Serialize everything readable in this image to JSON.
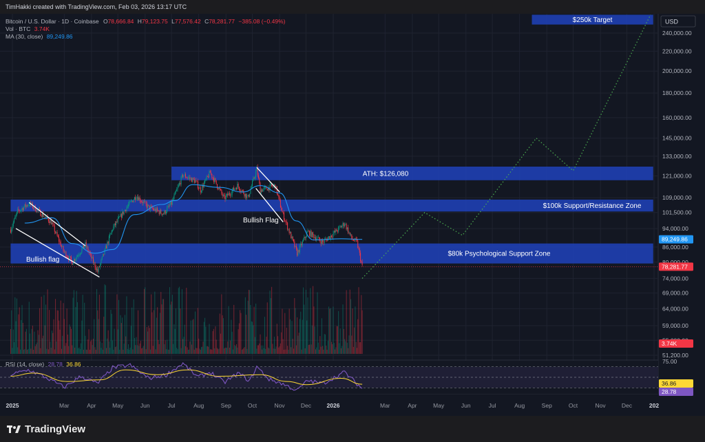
{
  "header": {
    "credit": "TimHakki created with TradingView.com, Feb 03, 2026 13:17 UTC"
  },
  "legend": {
    "symbol": "Bitcoin / U.S. Dollar · 1D · Coinbase",
    "open_label": "O",
    "open": "78,666.84",
    "high_label": "H",
    "high": "79,123.75",
    "low_label": "L",
    "low": "77,576.42",
    "close_label": "C",
    "close": "78,281.77",
    "change": "−385.08 (−0.49%)",
    "vol_label": "Vol · BTC",
    "vol": "3.74K",
    "ma_label": "MA (30, close)",
    "ma": "89,249.86",
    "rsi_label": "RSI (14, close)",
    "rsi": "28.78",
    "rsi_ma": "36.86"
  },
  "currency": "USD",
  "footer": {
    "brand": "TradingView"
  },
  "colors": {
    "background": "#131722",
    "up": "#089981",
    "down": "#f23645",
    "zone": "#1e3fb0",
    "ma": "#2196f3",
    "rsi": "#7e57c2",
    "rsi_ma": "#fdd835",
    "projection": "#4caf50"
  },
  "chart_data": {
    "type": "candlestick",
    "x_ticks": [
      "2025",
      "Mar",
      "Apr",
      "May",
      "Jun",
      "Jul",
      "Aug",
      "Sep",
      "Oct",
      "Nov",
      "Dec",
      "2026",
      "Mar",
      "Apr",
      "May",
      "Jun",
      "Jul",
      "Aug",
      "Sep",
      "Oct",
      "Nov",
      "Dec",
      "202"
    ],
    "y_scale": "log",
    "y_ticks": [
      51200,
      55000,
      59000,
      64000,
      69000,
      74000,
      80000,
      86000,
      94000,
      101500,
      109000,
      121000,
      133000,
      145000,
      160000,
      180000,
      200000,
      220000,
      240000
    ],
    "y_tick_labels": [
      "51,200.00",
      "55,000.00",
      "59,000.00",
      "64,000.00",
      "69,000.00",
      "74,000.00",
      "80,000.00",
      "86,000.00",
      "94,000.00",
      "101,500.00",
      "109,000.00",
      "121,000.00",
      "133,000.00",
      "145,000.00",
      "160,000.00",
      "180,000.00",
      "200,000.00",
      "220,000.00",
      "240,000.00"
    ],
    "price_path": [
      [
        "2024-12-30",
        93500
      ],
      [
        "2025-01-07",
        102000
      ],
      [
        "2025-01-20",
        106000
      ],
      [
        "2025-01-31",
        102000
      ],
      [
        "2025-02-14",
        97000
      ],
      [
        "2025-02-28",
        84500
      ],
      [
        "2025-03-10",
        80000
      ],
      [
        "2025-03-25",
        87000
      ],
      [
        "2025-04-08",
        76500
      ],
      [
        "2025-04-25",
        94000
      ],
      [
        "2025-05-10",
        103500
      ],
      [
        "2025-05-22",
        110000
      ],
      [
        "2025-06-05",
        104000
      ],
      [
        "2025-06-22",
        101000
      ],
      [
        "2025-07-01",
        106000
      ],
      [
        "2025-07-14",
        121500
      ],
      [
        "2025-07-28",
        118000
      ],
      [
        "2025-08-03",
        113000
      ],
      [
        "2025-08-14",
        123000
      ],
      [
        "2025-08-30",
        108500
      ],
      [
        "2025-09-14",
        115500
      ],
      [
        "2025-09-26",
        109000
      ],
      [
        "2025-10-06",
        125000
      ],
      [
        "2025-10-10",
        113000
      ],
      [
        "2025-10-27",
        115500
      ],
      [
        "2025-11-04",
        101500
      ],
      [
        "2025-11-21",
        83500
      ],
      [
        "2025-12-03",
        92500
      ],
      [
        "2025-12-20",
        88000
      ],
      [
        "2026-01-05",
        93000
      ],
      [
        "2026-01-14",
        96500
      ],
      [
        "2026-01-22",
        89500
      ],
      [
        "2026-01-28",
        88000
      ],
      [
        "2026-02-03",
        78281.77
      ]
    ],
    "ma_path": [
      [
        "2025-01-15",
        96500
      ],
      [
        "2025-02-15",
        99000
      ],
      [
        "2025-03-10",
        87500
      ],
      [
        "2025-04-05",
        83500
      ],
      [
        "2025-04-25",
        85000
      ],
      [
        "2025-05-20",
        100500
      ],
      [
        "2025-06-20",
        105500
      ],
      [
        "2025-07-05",
        107500
      ],
      [
        "2025-07-25",
        116000
      ],
      [
        "2025-08-25",
        114500
      ],
      [
        "2025-09-20",
        112000
      ],
      [
        "2025-10-10",
        115500
      ],
      [
        "2025-11-01",
        111500
      ],
      [
        "2025-11-20",
        97500
      ],
      [
        "2025-12-10",
        89000
      ],
      [
        "2026-01-10",
        89500
      ],
      [
        "2026-02-03",
        89249.86
      ]
    ],
    "projection": [
      [
        "2026-02-03",
        74000
      ],
      [
        "2026-04-15",
        101500
      ],
      [
        "2026-05-28",
        91000
      ],
      [
        "2026-08-20",
        145000
      ],
      [
        "2026-10-01",
        124000
      ],
      [
        "2026-12-28",
        262000
      ]
    ],
    "zones": [
      {
        "label": "$250k Target",
        "low": 250000,
        "high": 262000,
        "from": "2026-08-15",
        "to": "2026-12-31"
      },
      {
        "label": "ATH: $126,080",
        "low": 118500,
        "high": 126500,
        "from": "2025-07-01",
        "to": "2026-12-31"
      },
      {
        "label": "$100k Support/Resistance Zone",
        "low": 102000,
        "high": 108000,
        "from": "2024-12-30",
        "to": "2026-12-31"
      },
      {
        "label": "$80k Psychological Support Zone",
        "low": 79500,
        "high": 87500,
        "from": "2024-12-30",
        "to": "2026-12-31"
      }
    ],
    "flags": [
      {
        "label": "Bullish flag",
        "upper": [
          [
            "2025-01-20",
            106500
          ],
          [
            "2025-03-25",
            86500
          ]
        ],
        "lower": [
          [
            "2025-01-05",
            94000
          ],
          [
            "2025-04-10",
            74500
          ]
        ]
      },
      {
        "label": "Bullish Flag",
        "upper": [
          [
            "2025-10-06",
            126000
          ],
          [
            "2025-11-01",
            112000
          ]
        ],
        "lower": [
          [
            "2025-10-05",
            114000
          ],
          [
            "2025-11-05",
            97000
          ]
        ]
      }
    ],
    "current_price": 78281.77,
    "current_price_label": "78,281.77",
    "ma_value_label": "89,249.86",
    "volume_label": "3.74K",
    "rsi": {
      "levels": [
        30,
        50,
        70
      ],
      "tick_labels": [
        "75.00",
        "36.86",
        "28.78"
      ],
      "path": [
        [
          "2024-12-30",
          55
        ],
        [
          "2025-01-20",
          64
        ],
        [
          "2025-02-10",
          48
        ],
        [
          "2025-03-01",
          31
        ],
        [
          "2025-03-20",
          52
        ],
        [
          "2025-04-08",
          38
        ],
        [
          "2025-04-25",
          68
        ],
        [
          "2025-05-15",
          73
        ],
        [
          "2025-06-05",
          48
        ],
        [
          "2025-06-25",
          55
        ],
        [
          "2025-07-14",
          76
        ],
        [
          "2025-07-31",
          50
        ],
        [
          "2025-08-14",
          60
        ],
        [
          "2025-08-30",
          40
        ],
        [
          "2025-09-15",
          58
        ],
        [
          "2025-09-28",
          43
        ],
        [
          "2025-10-06",
          70
        ],
        [
          "2025-10-20",
          46
        ],
        [
          "2025-11-01",
          40
        ],
        [
          "2025-11-21",
          25
        ],
        [
          "2025-12-03",
          44
        ],
        [
          "2025-12-20",
          38
        ],
        [
          "2026-01-14",
          60
        ],
        [
          "2026-01-25",
          42
        ],
        [
          "2026-02-03",
          28.78
        ]
      ],
      "ma_path": [
        [
          "2024-12-30",
          52
        ],
        [
          "2025-01-25",
          58
        ],
        [
          "2025-03-05",
          42
        ],
        [
          "2025-04-10",
          45
        ],
        [
          "2025-05-10",
          64
        ],
        [
          "2025-06-15",
          55
        ],
        [
          "2025-07-20",
          64
        ],
        [
          "2025-08-25",
          52
        ],
        [
          "2025-10-10",
          55
        ],
        [
          "2025-11-10",
          42
        ],
        [
          "2025-12-01",
          36
        ],
        [
          "2026-01-10",
          48
        ],
        [
          "2026-02-03",
          36.86
        ]
      ]
    }
  }
}
